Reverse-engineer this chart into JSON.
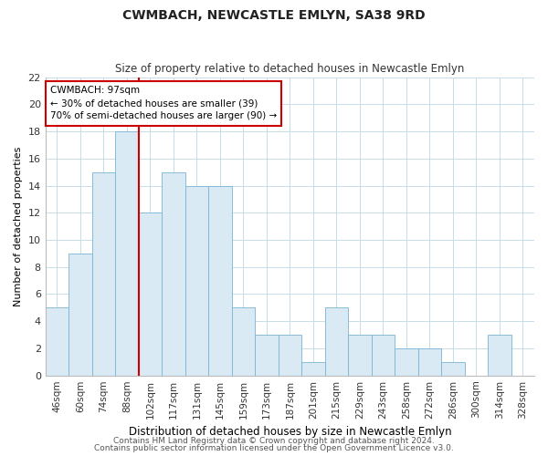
{
  "title": "CWMBACH, NEWCASTLE EMLYN, SA38 9RD",
  "subtitle": "Size of property relative to detached houses in Newcastle Emlyn",
  "xlabel": "Distribution of detached houses by size in Newcastle Emlyn",
  "ylabel": "Number of detached properties",
  "categories": [
    "46sqm",
    "60sqm",
    "74sqm",
    "88sqm",
    "102sqm",
    "117sqm",
    "131sqm",
    "145sqm",
    "159sqm",
    "173sqm",
    "187sqm",
    "201sqm",
    "215sqm",
    "229sqm",
    "243sqm",
    "258sqm",
    "272sqm",
    "286sqm",
    "300sqm",
    "314sqm",
    "328sqm"
  ],
  "values": [
    5,
    9,
    15,
    18,
    12,
    15,
    14,
    14,
    5,
    3,
    3,
    1,
    5,
    3,
    3,
    2,
    2,
    1,
    0,
    3,
    0
  ],
  "bar_color": "#daeaf5",
  "bar_edge_color": "#7ab4d4",
  "vline_color": "#cc0000",
  "annotation_line1": "CWMBACH: 97sqm",
  "annotation_line2": "← 30% of detached houses are smaller (39)",
  "annotation_line3": "70% of semi-detached houses are larger (90) →",
  "annotation_box_color": "#ffffff",
  "annotation_box_edge": "#cc0000",
  "ylim": [
    0,
    22
  ],
  "yticks": [
    0,
    2,
    4,
    6,
    8,
    10,
    12,
    14,
    16,
    18,
    20,
    22
  ],
  "footer1": "Contains HM Land Registry data © Crown copyright and database right 2024.",
  "footer2": "Contains public sector information licensed under the Open Government Licence v3.0.",
  "background_color": "#ffffff",
  "grid_color": "#c8dce8"
}
